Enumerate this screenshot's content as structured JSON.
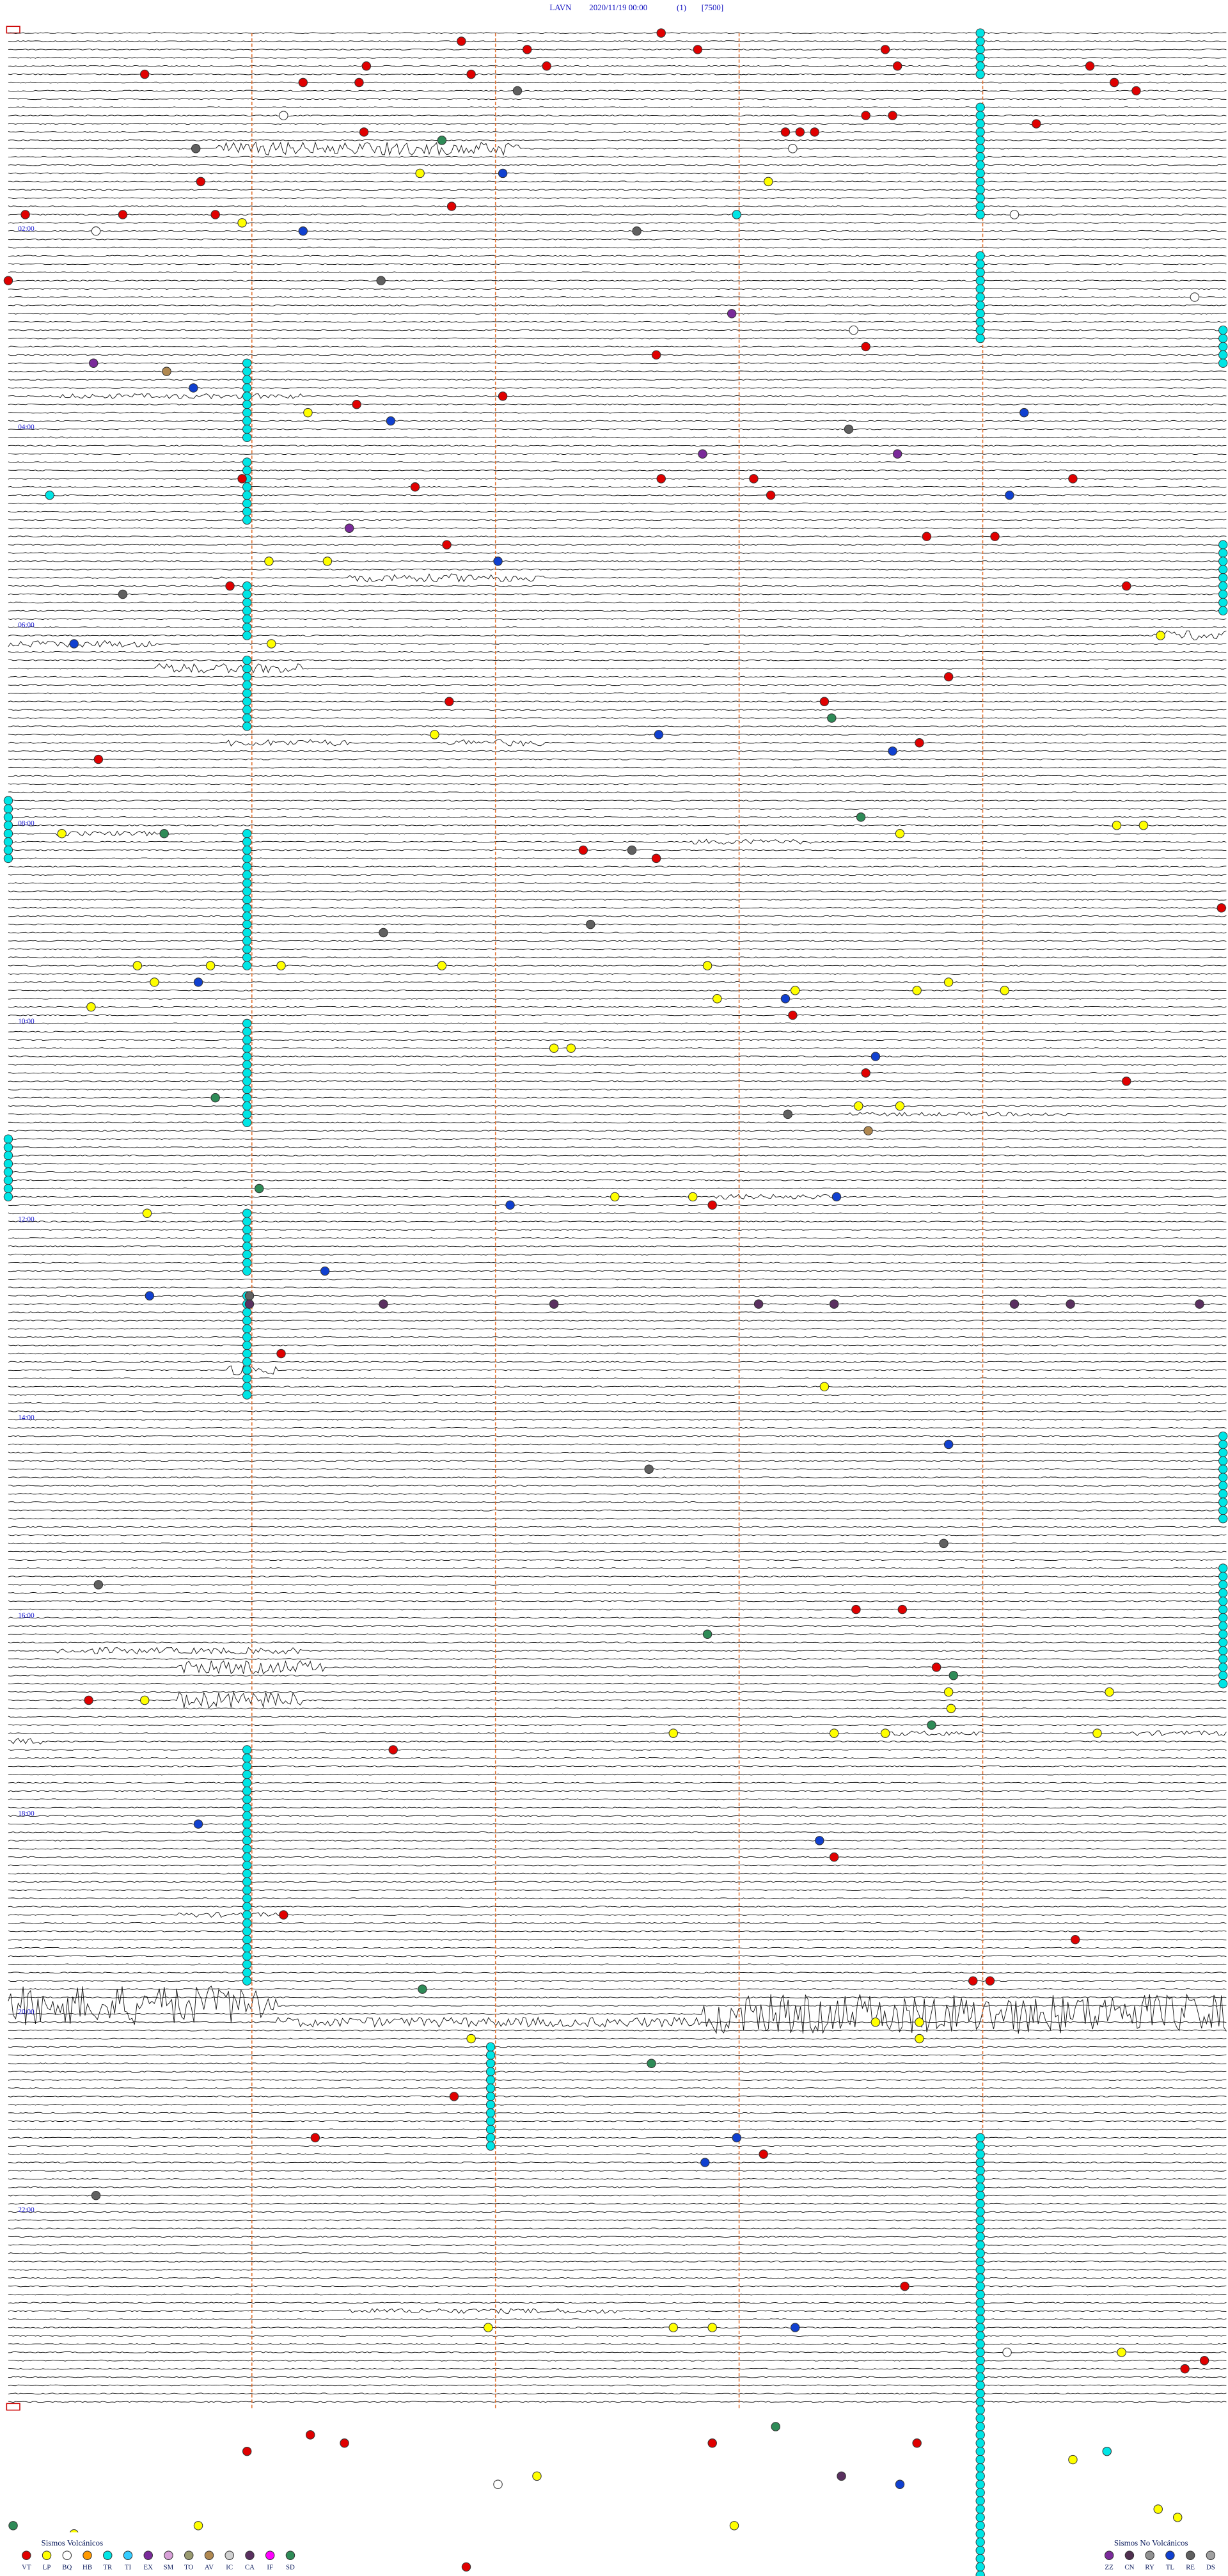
{
  "header": {
    "station": "LAVN",
    "datetime": "2020/11/19 00:00",
    "channel": "(1)",
    "scale": "[7500]"
  },
  "hour_labels": [
    {
      "row": 24,
      "label": "02:00"
    },
    {
      "row": 48,
      "label": "04:00"
    },
    {
      "row": 72,
      "label": "06:00"
    },
    {
      "row": 96,
      "label": "08:00"
    },
    {
      "row": 120,
      "label": "10:00"
    },
    {
      "row": 144,
      "label": "12:00"
    },
    {
      "row": 168,
      "label": "14:00"
    },
    {
      "row": 192,
      "label": "16:00"
    },
    {
      "row": 216,
      "label": "18:00"
    },
    {
      "row": 240,
      "label": "20:00"
    },
    {
      "row": 264,
      "label": "22:00"
    }
  ],
  "rows": 288,
  "minutes_per_row": 5,
  "minute_lines": [
    1,
    2,
    3,
    4
  ],
  "legend": {
    "volcanic": {
      "title": "Sismos Volcánicos",
      "items": [
        {
          "code": "VT",
          "color": "#e00000"
        },
        {
          "code": "LP",
          "color": "#ffff00"
        },
        {
          "code": "BQ",
          "color": "#ffffff"
        },
        {
          "code": "HB",
          "color": "#ff9900"
        },
        {
          "code": "TR",
          "color": "#00e5e5"
        },
        {
          "code": "TI",
          "color": "#33ccff"
        },
        {
          "code": "EX",
          "color": "#7a2a9a"
        },
        {
          "code": "SM",
          "color": "#d8a0d8"
        },
        {
          "code": "TO",
          "color": "#9a9a70"
        },
        {
          "code": "AV",
          "color": "#b08850"
        },
        {
          "code": "IC",
          "color": "#d0d0d0"
        },
        {
          "code": "CA",
          "color": "#5a3060"
        },
        {
          "code": "IF",
          "color": "#ff00ff"
        },
        {
          "code": "SD",
          "color": "#2e8b57"
        }
      ]
    },
    "non_volcanic": {
      "title": "Sismos No Volcánicos",
      "items": [
        {
          "code": "ZZ",
          "color": "#7a2a9a"
        },
        {
          "code": "CN",
          "color": "#503050"
        },
        {
          "code": "RY",
          "color": "#909090"
        },
        {
          "code": "TL",
          "color": "#1040d0"
        },
        {
          "code": "RE",
          "color": "#606060"
        },
        {
          "code": "DS",
          "color": "#a0a0a0"
        }
      ]
    }
  },
  "cyan_runs": [
    [
      0,
      5,
      3.99
    ],
    [
      9,
      22,
      3.99
    ],
    [
      27,
      37,
      3.99
    ],
    [
      40,
      49,
      0.98
    ],
    [
      52,
      59,
      0.98
    ],
    [
      67,
      73,
      0.98
    ],
    [
      76,
      84,
      0.98
    ],
    [
      97,
      113,
      0.98
    ],
    [
      120,
      132,
      0.98
    ],
    [
      143,
      150,
      0.98
    ],
    [
      153,
      165,
      0.98
    ],
    [
      208,
      236,
      0.98
    ],
    [
      244,
      256,
      1.98
    ],
    [
      255,
      311,
      3.99
    ],
    [
      36,
      40,
      5
    ],
    [
      62,
      70,
      5
    ],
    [
      170,
      180,
      5
    ],
    [
      186,
      200,
      5
    ],
    [
      93,
      100,
      0
    ],
    [
      134,
      141,
      0
    ]
  ],
  "bursts": [
    [
      14,
      0.85,
      2.1,
      4
    ],
    [
      44,
      0.2,
      1.2,
      1.5
    ],
    [
      66,
      0.3,
      0.9,
      1
    ],
    [
      66,
      1.4,
      2.2,
      2.5
    ],
    [
      74,
      0,
      0.6,
      2
    ],
    [
      73,
      4.7,
      5,
      3
    ],
    [
      77,
      0.6,
      1.2,
      3
    ],
    [
      86,
      0.9,
      1.4,
      2
    ],
    [
      86,
      1.8,
      2.2,
      2
    ],
    [
      97,
      0.2,
      0.6,
      1.5
    ],
    [
      98,
      2.8,
      3.3,
      1.5
    ],
    [
      131,
      3.45,
      4.4,
      1.2
    ],
    [
      141,
      2.9,
      3.4,
      1.5
    ],
    [
      162,
      0.9,
      1.1,
      3
    ],
    [
      166,
      2.4,
      3,
      1
    ],
    [
      196,
      0.2,
      1.2,
      2
    ],
    [
      198,
      0.7,
      1.3,
      4
    ],
    [
      202,
      0.7,
      1.2,
      5
    ],
    [
      207,
      0,
      0.15,
      2
    ],
    [
      206,
      3.6,
      4,
      1.5
    ],
    [
      206,
      4.6,
      5,
      1.5
    ],
    [
      239,
      0,
      1.1,
      12
    ],
    [
      240,
      2.85,
      5,
      12
    ],
    [
      241,
      1.1,
      2.85,
      3
    ],
    [
      228,
      0.7,
      1.1,
      1.5
    ],
    [
      276,
      1.4,
      2.5,
      1.5
    ]
  ],
  "events": [
    [
      1,
      1.86,
      "VT"
    ],
    [
      0,
      2.68,
      "VT"
    ],
    [
      2,
      2.13,
      "VT"
    ],
    [
      4,
      2.21,
      "VT"
    ],
    [
      2,
      2.83,
      "VT"
    ],
    [
      2,
      3.6,
      "VT"
    ],
    [
      4,
      3.65,
      "VT"
    ],
    [
      4,
      1.47,
      "VT"
    ],
    [
      5,
      1.9,
      "VT"
    ],
    [
      5,
      0.56,
      "VT"
    ],
    [
      6,
      1.21,
      "VT"
    ],
    [
      6,
      1.44,
      "VT"
    ],
    [
      7,
      2.09,
      "RE"
    ],
    [
      4,
      4.44,
      "VT"
    ],
    [
      6,
      4.54,
      "VT"
    ],
    [
      7,
      4.63,
      "VT"
    ],
    [
      10,
      1.13,
      "BQ"
    ],
    [
      10,
      3.52,
      "VT"
    ],
    [
      10,
      3.63,
      "VT"
    ],
    [
      11,
      4.22,
      "VT"
    ],
    [
      12,
      3.19,
      "VT"
    ],
    [
      12,
      3.25,
      "VT"
    ],
    [
      12,
      3.31,
      "VT"
    ],
    [
      14,
      0.77,
      "RE"
    ],
    [
      12,
      1.46,
      "VT"
    ],
    [
      13,
      1.78,
      "SD"
    ],
    [
      14,
      3.22,
      "BQ"
    ],
    [
      17,
      1.69,
      "LP"
    ],
    [
      17,
      2.03,
      "TL"
    ],
    [
      18,
      0.79,
      "VT"
    ],
    [
      18,
      3.12,
      "LP"
    ],
    [
      21,
      1.82,
      "VT"
    ],
    [
      22,
      0.07,
      "VT"
    ],
    [
      22,
      0.47,
      "VT"
    ],
    [
      22,
      0.85,
      "VT"
    ],
    [
      23,
      0.96,
      "LP"
    ],
    [
      22,
      2.99,
      "TR"
    ],
    [
      22,
      4.13,
      "BQ"
    ],
    [
      24,
      0.36,
      "BQ"
    ],
    [
      24,
      1.21,
      "TL"
    ],
    [
      24,
      2.58,
      "RE"
    ],
    [
      30,
      0,
      "VT"
    ],
    [
      30,
      1.53,
      "RE"
    ],
    [
      34,
      2.97,
      "EX"
    ],
    [
      32,
      4.87,
      "BQ"
    ],
    [
      36,
      3.47,
      "BQ"
    ],
    [
      38,
      3.52,
      "VT"
    ],
    [
      39,
      2.66,
      "VT"
    ],
    [
      40,
      0.35,
      "EX"
    ],
    [
      41,
      0.65,
      "AV"
    ],
    [
      43,
      0.76,
      "TL"
    ],
    [
      46,
      1.23,
      "LP"
    ],
    [
      45,
      1.43,
      "VT"
    ],
    [
      47,
      1.57,
      "TL"
    ],
    [
      44,
      2.03,
      "VT"
    ],
    [
      46,
      4.17,
      "TL"
    ],
    [
      48,
      3.45,
      "RE"
    ],
    [
      51,
      2.85,
      "EX"
    ],
    [
      51,
      3.65,
      "EX"
    ],
    [
      54,
      0.96,
      "VT"
    ],
    [
      55,
      1.67,
      "VT"
    ],
    [
      54,
      2.68,
      "VT"
    ],
    [
      54,
      3.06,
      "VT"
    ],
    [
      56,
      3.13,
      "VT"
    ],
    [
      56,
      4.11,
      "TL"
    ],
    [
      54,
      4.37,
      "VT"
    ],
    [
      56,
      0.17,
      "TR"
    ],
    [
      60,
      1.4,
      "EX"
    ],
    [
      62,
      1.8,
      "VT"
    ],
    [
      64,
      1.07,
      "LP"
    ],
    [
      64,
      1.31,
      "LP"
    ],
    [
      64,
      2.01,
      "TL"
    ],
    [
      61,
      3.77,
      "VT"
    ],
    [
      61,
      4.05,
      "VT"
    ],
    [
      68,
      0.47,
      "RE"
    ],
    [
      67,
      0.91,
      "VT"
    ],
    [
      67,
      4.59,
      "VT"
    ],
    [
      74,
      1.08,
      "LP"
    ],
    [
      74,
      0.27,
      "TL"
    ],
    [
      73,
      4.73,
      "LP"
    ],
    [
      78,
      3.86,
      "VT"
    ],
    [
      81,
      1.81,
      "VT"
    ],
    [
      81,
      3.35,
      "VT"
    ],
    [
      83,
      3.38,
      "SD"
    ],
    [
      85,
      1.75,
      "LP"
    ],
    [
      85,
      2.67,
      "TL"
    ],
    [
      87,
      3.63,
      "TL"
    ],
    [
      86,
      3.74,
      "VT"
    ],
    [
      88,
      0.37,
      "VT"
    ],
    [
      95,
      3.5,
      "SD"
    ],
    [
      97,
      0.64,
      "SD"
    ],
    [
      97,
      0.22,
      "LP"
    ],
    [
      96,
      4.55,
      "LP"
    ],
    [
      96,
      4.66,
      "LP"
    ],
    [
      99,
      2.36,
      "VT"
    ],
    [
      100,
      2.66,
      "VT"
    ],
    [
      99,
      2.56,
      "RE"
    ],
    [
      97,
      3.66,
      "LP"
    ],
    [
      106,
      4.98,
      "VT"
    ],
    [
      108,
      2.39,
      "RE"
    ],
    [
      109,
      1.54,
      "RE"
    ],
    [
      113,
      0.53,
      "LP"
    ],
    [
      113,
      0.83,
      "LP"
    ],
    [
      113,
      1.12,
      "LP"
    ],
    [
      113,
      1.78,
      "LP"
    ],
    [
      113,
      2.87,
      "LP"
    ],
    [
      116,
      3.73,
      "LP"
    ],
    [
      115,
      3.86,
      "LP"
    ],
    [
      116,
      4.09,
      "LP"
    ],
    [
      115,
      0.78,
      "TL"
    ],
    [
      115,
      0.6,
      "LP"
    ],
    [
      116,
      3.23,
      "LP"
    ],
    [
      117,
      2.91,
      "LP"
    ],
    [
      117,
      3.19,
      "TL"
    ],
    [
      119,
      3.22,
      "VT"
    ],
    [
      118,
      0.34,
      "LP"
    ],
    [
      123,
      2.24,
      "LP"
    ],
    [
      123,
      2.31,
      "LP"
    ],
    [
      124,
      3.56,
      "TL"
    ],
    [
      126,
      3.52,
      "VT"
    ],
    [
      127,
      4.59,
      "VT"
    ],
    [
      129,
      0.85,
      "SD"
    ],
    [
      130,
      3.49,
      "LP"
    ],
    [
      131,
      3.2,
      "RE"
    ],
    [
      130,
      3.66,
      "LP"
    ],
    [
      133,
      3.53,
      "AV"
    ],
    [
      142,
      2.06,
      "TL"
    ],
    [
      141,
      2.49,
      "LP"
    ],
    [
      141,
      2.81,
      "LP"
    ],
    [
      142,
      2.89,
      "VT"
    ],
    [
      141,
      3.4,
      "TL"
    ],
    [
      143,
      0.57,
      "LP"
    ],
    [
      140,
      1.03,
      "SD"
    ],
    [
      150,
      1.3,
      "TL"
    ],
    [
      153,
      0.58,
      "TL"
    ],
    [
      153,
      0.99,
      "RE"
    ],
    [
      154,
      0.99,
      "CA"
    ],
    [
      154,
      1.54,
      "CA"
    ],
    [
      154,
      2.24,
      "CA"
    ],
    [
      154,
      3.08,
      "CA"
    ],
    [
      154,
      3.39,
      "CA"
    ],
    [
      154,
      4.13,
      "CA"
    ],
    [
      154,
      4.36,
      "CA"
    ],
    [
      154,
      4.89,
      "CA"
    ],
    [
      160,
      1.12,
      "VT"
    ],
    [
      164,
      3.35,
      "LP"
    ],
    [
      171,
      3.86,
      "TL"
    ],
    [
      174,
      2.63,
      "RE"
    ],
    [
      183,
      3.84,
      "RE"
    ],
    [
      188,
      0.37,
      "RE"
    ],
    [
      191,
      3.48,
      "VT"
    ],
    [
      191,
      3.67,
      "VT"
    ],
    [
      194,
      2.87,
      "SD"
    ],
    [
      198,
      3.81,
      "VT"
    ],
    [
      199,
      3.88,
      "SD"
    ],
    [
      202,
      0.33,
      "VT"
    ],
    [
      202,
      0.56,
      "LP"
    ],
    [
      201,
      3.86,
      "LP"
    ],
    [
      201,
      4.52,
      "LP"
    ],
    [
      203,
      3.87,
      "LP"
    ],
    [
      206,
      2.73,
      "LP"
    ],
    [
      206,
      3.39,
      "LP"
    ],
    [
      206,
      3.6,
      "LP"
    ],
    [
      205,
      3.79,
      "SD"
    ],
    [
      206,
      4.47,
      "LP"
    ],
    [
      208,
      1.58,
      "VT"
    ],
    [
      228,
      1.13,
      "VT"
    ],
    [
      217,
      0.78,
      "TL"
    ],
    [
      219,
      3.33,
      "TL"
    ],
    [
      221,
      3.39,
      "VT"
    ],
    [
      231,
      4.38,
      "VT"
    ],
    [
      237,
      1.7,
      "SD"
    ],
    [
      236,
      4.03,
      "VT"
    ],
    [
      236,
      3.96,
      "VT"
    ],
    [
      241,
      3.56,
      "LP"
    ],
    [
      241,
      3.74,
      "LP"
    ],
    [
      243,
      3.74,
      "LP"
    ],
    [
      243,
      1.9,
      "LP"
    ],
    [
      246,
      2.64,
      "SD"
    ],
    [
      250,
      1.83,
      "VT"
    ],
    [
      255,
      1.26,
      "VT"
    ],
    [
      255,
      2.99,
      "TL"
    ],
    [
      257,
      3.1,
      "VT"
    ],
    [
      258,
      2.86,
      "TL"
    ],
    [
      262,
      0.36,
      "RE"
    ],
    [
      278,
      2.73,
      "LP"
    ],
    [
      278,
      1.97,
      "LP"
    ],
    [
      278,
      2.89,
      "LP"
    ],
    [
      278,
      3.23,
      "TL"
    ],
    [
      273,
      3.68,
      "VT"
    ],
    [
      283,
      4.83,
      "VT"
    ],
    [
      282,
      4.91,
      "VT"
    ],
    [
      281,
      4.57,
      "LP"
    ],
    [
      281,
      4.1,
      "BQ"
    ],
    [
      293,
      0.98,
      "VT"
    ],
    [
      291,
      1.24,
      "VT"
    ],
    [
      292,
      1.38,
      "VT"
    ],
    [
      292,
      2.89,
      "VT"
    ],
    [
      292,
      3.73,
      "VT"
    ],
    [
      290,
      3.15,
      "SD"
    ],
    [
      294,
      4.37,
      "LP"
    ],
    [
      296,
      2.17,
      "LP"
    ],
    [
      297,
      2.01,
      "BQ"
    ],
    [
      302,
      2.98,
      "LP"
    ],
    [
      302,
      0.78,
      "LP"
    ],
    [
      303,
      0.27,
      "LP"
    ],
    [
      302,
      0.02,
      "SD"
    ],
    [
      307,
      1.88,
      "VT"
    ],
    [
      300,
      4.72,
      "LP"
    ],
    [
      301,
      4.8,
      "LP"
    ],
    [
      296,
      3.42,
      "CA"
    ],
    [
      297,
      3.66,
      "TL"
    ],
    [
      293,
      4.51,
      "TR"
    ]
  ]
}
